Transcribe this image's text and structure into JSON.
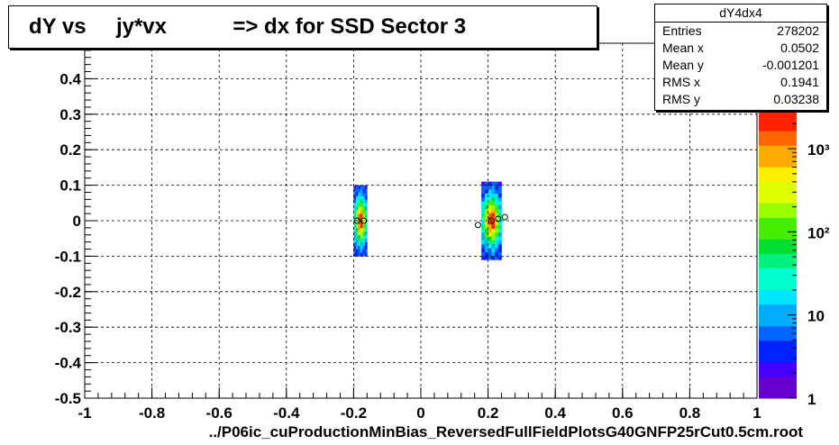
{
  "title": "dY vs     jy*vx           => dx for SSD Sector 3",
  "stats": {
    "name": "dY4dx4",
    "rows": [
      {
        "label": "Entries",
        "value": "278202"
      },
      {
        "label": "Mean x",
        "value": "0.0502"
      },
      {
        "label": "Mean y",
        "value": "-0.001201"
      },
      {
        "label": "RMS x",
        "value": "0.1941"
      },
      {
        "label": "RMS y",
        "value": "0.03238"
      }
    ]
  },
  "footer": "../P06ic_cuProductionMinBias_ReversedFullFieldPlotsG40GNFP25rCut0.5cm.root",
  "chart_data": {
    "type": "heatmap",
    "xlim": [
      -1,
      1
    ],
    "ylim": [
      -0.5,
      0.5
    ],
    "x_ticks": [
      "-1",
      "-0.8",
      "-0.6",
      "-0.4",
      "-0.2",
      "0",
      "0.2",
      "0.4",
      "0.6",
      "0.8",
      "1"
    ],
    "y_ticks": [
      "-0.5",
      "-0.4",
      "-0.3",
      "-0.2",
      "-0.1",
      "0",
      "0.1",
      "0.2",
      "0.3",
      "0.4"
    ],
    "grid": true,
    "colorbar": {
      "scale": "log",
      "range": [
        1,
        3000
      ],
      "ticks": [
        "1",
        "10",
        "10²",
        "10³"
      ]
    },
    "clusters": [
      {
        "x_range": [
          -0.2,
          -0.16
        ],
        "y_range": [
          -0.1,
          0.1
        ],
        "peak_x": -0.18,
        "peak_y": 0.0
      },
      {
        "x_range": [
          0.18,
          0.24
        ],
        "y_range": [
          -0.11,
          0.11
        ],
        "peak_x": 0.21,
        "peak_y": 0.0
      }
    ],
    "profile_points": [
      {
        "x": -0.19,
        "y": 0.0
      },
      {
        "x": -0.17,
        "y": 0.0
      },
      {
        "x": 0.17,
        "y": -0.012
      },
      {
        "x": 0.21,
        "y": 0.0
      },
      {
        "x": 0.23,
        "y": 0.005
      },
      {
        "x": 0.25,
        "y": 0.01
      }
    ]
  }
}
